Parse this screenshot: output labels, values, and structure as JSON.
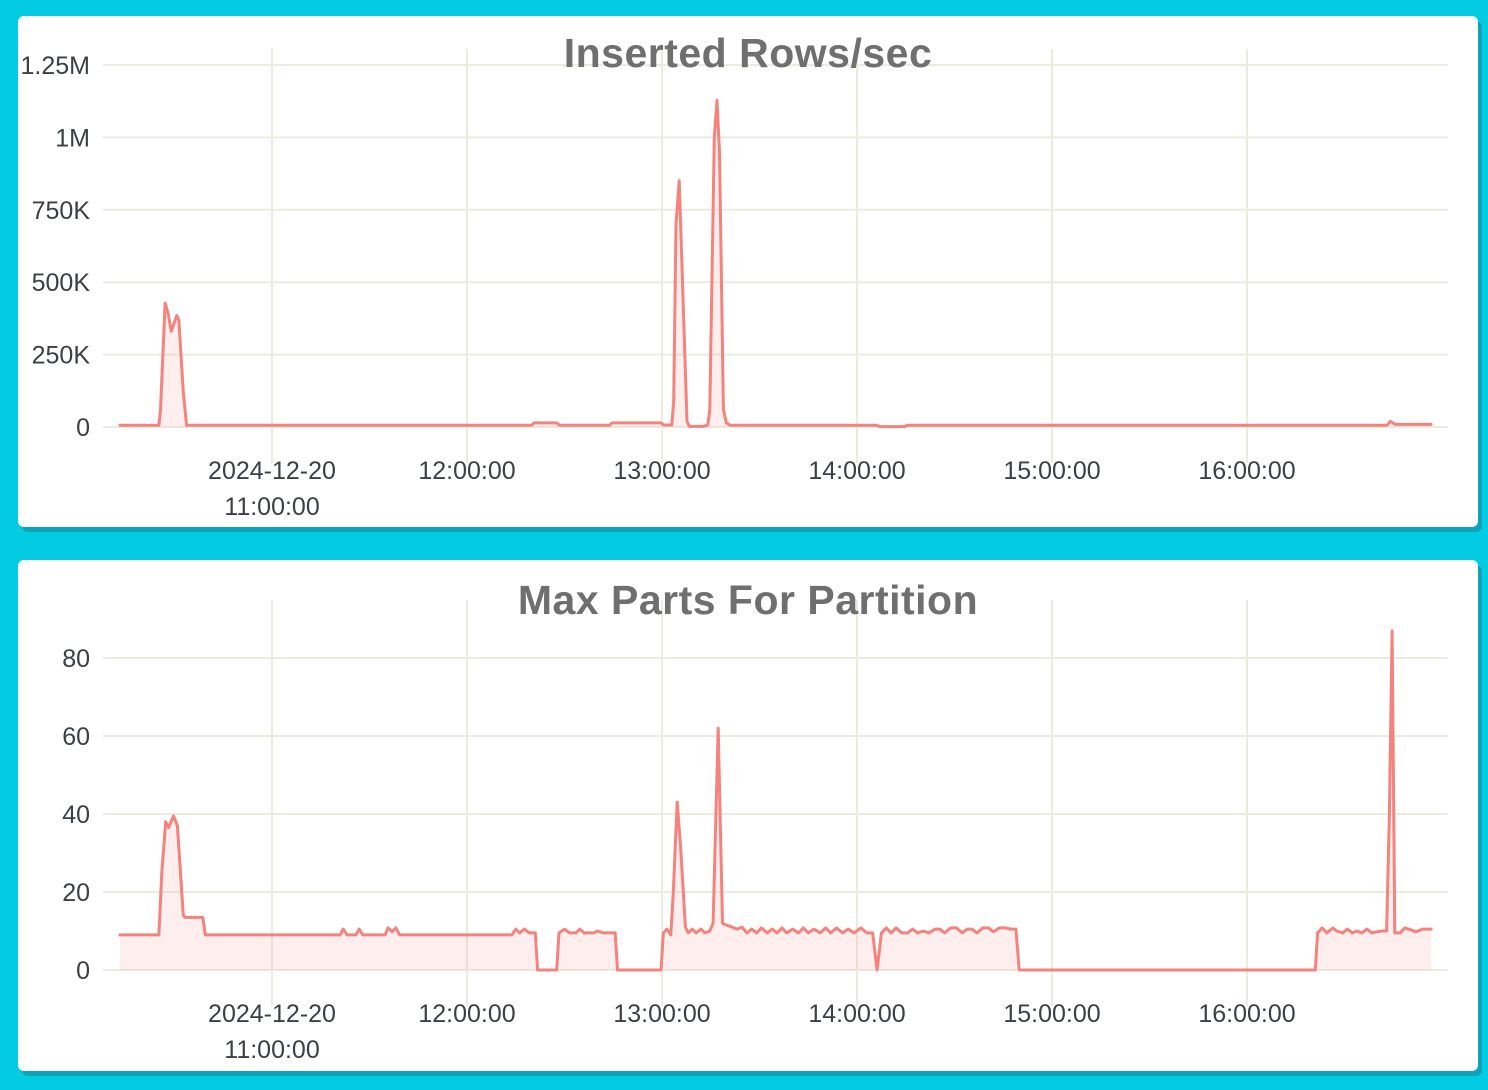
{
  "colors": {
    "background": "#03CBE2",
    "card_background": "#FFFFFF",
    "card_shadow": "#0BA4B8",
    "grid": "#ECEBE1",
    "tick_text": "#3C4043",
    "title_text": "#6F6F6F",
    "series_line": "#F4837D",
    "series_fill": "rgba(244,131,125,0.13)"
  },
  "chart_data": [
    {
      "type": "area",
      "title": "Inserted Rows/sec",
      "xlabel": "",
      "ylabel": "",
      "grid": true,
      "legend": "none",
      "x_axis": "time (2024-12-20, hours)",
      "x_range_hours": [
        10.22,
        16.944
      ],
      "ylim": [
        0,
        1250000
      ],
      "x_ticks": [
        {
          "h": 11,
          "lines": [
            "2024-12-20",
            "11:00:00"
          ]
        },
        {
          "h": 12,
          "lines": [
            "12:00:00"
          ]
        },
        {
          "h": 13,
          "lines": [
            "13:00:00"
          ]
        },
        {
          "h": 14,
          "lines": [
            "14:00:00"
          ]
        },
        {
          "h": 15,
          "lines": [
            "15:00:00"
          ]
        },
        {
          "h": 16,
          "lines": [
            "16:00:00"
          ]
        }
      ],
      "y_ticks": [
        {
          "v": 0,
          "label": "0"
        },
        {
          "v": 250000,
          "label": "250K"
        },
        {
          "v": 500000,
          "label": "500K"
        },
        {
          "v": 750000,
          "label": "750K"
        },
        {
          "v": 1000000,
          "label": "1M"
        },
        {
          "v": 1250000,
          "label": "1.25M"
        }
      ],
      "series": [
        {
          "name": "inserted rows/sec",
          "points": [
            [
              10.22,
              6000
            ],
            [
              10.42,
              6000
            ],
            [
              10.428,
              60000
            ],
            [
              10.452,
              428000
            ],
            [
              10.468,
              390000
            ],
            [
              10.483,
              330000
            ],
            [
              10.512,
              385000
            ],
            [
              10.522,
              370000
            ],
            [
              10.545,
              120000
            ],
            [
              10.562,
              6000
            ],
            [
              12.33,
              6000
            ],
            [
              12.345,
              14000
            ],
            [
              12.46,
              14000
            ],
            [
              12.475,
              6000
            ],
            [
              12.73,
              6000
            ],
            [
              12.745,
              14000
            ],
            [
              12.995,
              14000
            ],
            [
              13.01,
              7000
            ],
            [
              13.05,
              7000
            ],
            [
              13.06,
              90000
            ],
            [
              13.072,
              700000
            ],
            [
              13.088,
              850000
            ],
            [
              13.098,
              650000
            ],
            [
              13.128,
              20000
            ],
            [
              13.14,
              2000
            ],
            [
              13.21,
              2000
            ],
            [
              13.235,
              7000
            ],
            [
              13.245,
              60000
            ],
            [
              13.268,
              1000000
            ],
            [
              13.282,
              1128000
            ],
            [
              13.295,
              950000
            ],
            [
              13.315,
              60000
            ],
            [
              13.33,
              14000
            ],
            [
              13.35,
              6000
            ],
            [
              14.1,
              6000
            ],
            [
              14.12,
              1500
            ],
            [
              14.24,
              1500
            ],
            [
              14.26,
              6000
            ],
            [
              16.7,
              6000
            ],
            [
              16.72,
              7000
            ],
            [
              16.735,
              20000
            ],
            [
              16.76,
              9000
            ],
            [
              16.944,
              9000
            ]
          ]
        }
      ]
    },
    {
      "type": "area",
      "title": "Max Parts For Partition",
      "xlabel": "",
      "ylabel": "",
      "grid": true,
      "legend": "none",
      "x_axis": "time (2024-12-20, hours)",
      "x_range_hours": [
        10.22,
        16.944
      ],
      "ylim": [
        0,
        90
      ],
      "x_ticks": [
        {
          "h": 11,
          "lines": [
            "2024-12-20",
            "11:00:00"
          ]
        },
        {
          "h": 12,
          "lines": [
            "12:00:00"
          ]
        },
        {
          "h": 13,
          "lines": [
            "13:00:00"
          ]
        },
        {
          "h": 14,
          "lines": [
            "14:00:00"
          ]
        },
        {
          "h": 15,
          "lines": [
            "15:00:00"
          ]
        },
        {
          "h": 16,
          "lines": [
            "16:00:00"
          ]
        }
      ],
      "y_ticks": [
        {
          "v": 0,
          "label": "0"
        },
        {
          "v": 20,
          "label": "20"
        },
        {
          "v": 40,
          "label": "40"
        },
        {
          "v": 60,
          "label": "60"
        },
        {
          "v": 80,
          "label": "80"
        }
      ],
      "series": [
        {
          "name": "max parts for partition",
          "points": [
            [
              10.22,
              9
            ],
            [
              10.42,
              9
            ],
            [
              10.435,
              25
            ],
            [
              10.455,
              38
            ],
            [
              10.47,
              36.5
            ],
            [
              10.495,
              39.5
            ],
            [
              10.515,
              37
            ],
            [
              10.545,
              14
            ],
            [
              10.555,
              13.5
            ],
            [
              10.645,
              13.5
            ],
            [
              10.658,
              9
            ],
            [
              11.35,
              9
            ],
            [
              11.365,
              10.5
            ],
            [
              11.385,
              9
            ],
            [
              11.43,
              9
            ],
            [
              11.447,
              10.5
            ],
            [
              11.465,
              9
            ],
            [
              11.58,
              9
            ],
            [
              11.595,
              10.8
            ],
            [
              11.617,
              9.8
            ],
            [
              11.635,
              10.8
            ],
            [
              11.655,
              9
            ],
            [
              12.23,
              9
            ],
            [
              12.25,
              10.5
            ],
            [
              12.27,
              9.5
            ],
            [
              12.295,
              10.5
            ],
            [
              12.32,
              9.5
            ],
            [
              12.35,
              9.5
            ],
            [
              12.362,
              0
            ],
            [
              12.46,
              0
            ],
            [
              12.472,
              9.5
            ],
            [
              12.5,
              10.5
            ],
            [
              12.525,
              9.5
            ],
            [
              12.56,
              9.5
            ],
            [
              12.578,
              10.5
            ],
            [
              12.6,
              9.5
            ],
            [
              12.65,
              9.5
            ],
            [
              12.67,
              10
            ],
            [
              12.7,
              9.5
            ],
            [
              12.76,
              9.5
            ],
            [
              12.772,
              0
            ],
            [
              12.995,
              0
            ],
            [
              13.007,
              9.5
            ],
            [
              13.025,
              10.5
            ],
            [
              13.045,
              9
            ],
            [
              13.058,
              20
            ],
            [
              13.078,
              43
            ],
            [
              13.095,
              32
            ],
            [
              13.12,
              11
            ],
            [
              13.135,
              9.5
            ],
            [
              13.155,
              10.5
            ],
            [
              13.175,
              9.5
            ],
            [
              13.2,
              10.5
            ],
            [
              13.22,
              9.5
            ],
            [
              13.245,
              10
            ],
            [
              13.262,
              12
            ],
            [
              13.288,
              62
            ],
            [
              13.31,
              12
            ],
            [
              13.33,
              11.5
            ],
            [
              13.36,
              11
            ],
            [
              13.385,
              10.5
            ],
            [
              13.41,
              11
            ],
            [
              13.435,
              9.5
            ],
            [
              13.46,
              10.5
            ],
            [
              13.485,
              9.5
            ],
            [
              13.51,
              10.8
            ],
            [
              13.54,
              9.5
            ],
            [
              13.565,
              10.5
            ],
            [
              13.59,
              9.5
            ],
            [
              13.615,
              10.8
            ],
            [
              13.64,
              9.5
            ],
            [
              13.67,
              10.5
            ],
            [
              13.7,
              9.5
            ],
            [
              13.725,
              10.8
            ],
            [
              13.75,
              9.5
            ],
            [
              13.78,
              10.5
            ],
            [
              13.81,
              9.5
            ],
            [
              13.84,
              10.8
            ],
            [
              13.865,
              9.5
            ],
            [
              13.895,
              10.8
            ],
            [
              13.925,
              9.5
            ],
            [
              13.955,
              10.5
            ],
            [
              13.985,
              9.5
            ],
            [
              14.02,
              10.8
            ],
            [
              14.05,
              9.5
            ],
            [
              14.08,
              9.5
            ],
            [
              14.103,
              0
            ],
            [
              14.125,
              9.5
            ],
            [
              14.15,
              10.8
            ],
            [
              14.175,
              9.5
            ],
            [
              14.2,
              10.8
            ],
            [
              14.23,
              9.5
            ],
            [
              14.26,
              9.5
            ],
            [
              14.285,
              10.5
            ],
            [
              14.31,
              9.5
            ],
            [
              14.34,
              10
            ],
            [
              14.37,
              9.5
            ],
            [
              14.4,
              10.5
            ],
            [
              14.425,
              10.5
            ],
            [
              14.45,
              9.5
            ],
            [
              14.48,
              10.8
            ],
            [
              14.51,
              10.8
            ],
            [
              14.54,
              9.5
            ],
            [
              14.565,
              10.5
            ],
            [
              14.59,
              10.5
            ],
            [
              14.615,
              9.5
            ],
            [
              14.645,
              10.8
            ],
            [
              14.675,
              10.8
            ],
            [
              14.7,
              9.8
            ],
            [
              14.73,
              10.8
            ],
            [
              14.76,
              10.8
            ],
            [
              14.79,
              10.5
            ],
            [
              14.815,
              10.5
            ],
            [
              14.832,
              0
            ],
            [
              16.35,
              0
            ],
            [
              16.362,
              9.5
            ],
            [
              16.385,
              10.8
            ],
            [
              16.41,
              9.5
            ],
            [
              16.44,
              10.8
            ],
            [
              16.46,
              10
            ],
            [
              16.49,
              9.5
            ],
            [
              16.515,
              10.5
            ],
            [
              16.54,
              9.5
            ],
            [
              16.565,
              10
            ],
            [
              16.59,
              9.5
            ],
            [
              16.615,
              10.5
            ],
            [
              16.64,
              9.5
            ],
            [
              16.665,
              9.8
            ],
            [
              16.69,
              10
            ],
            [
              16.716,
              10
            ],
            [
              16.73,
              40
            ],
            [
              16.744,
              87
            ],
            [
              16.758,
              9.5
            ],
            [
              16.785,
              9.5
            ],
            [
              16.81,
              10.8
            ],
            [
              16.84,
              10.3
            ],
            [
              16.865,
              9.8
            ],
            [
              16.9,
              10.5
            ],
            [
              16.944,
              10.5
            ]
          ]
        }
      ]
    }
  ]
}
